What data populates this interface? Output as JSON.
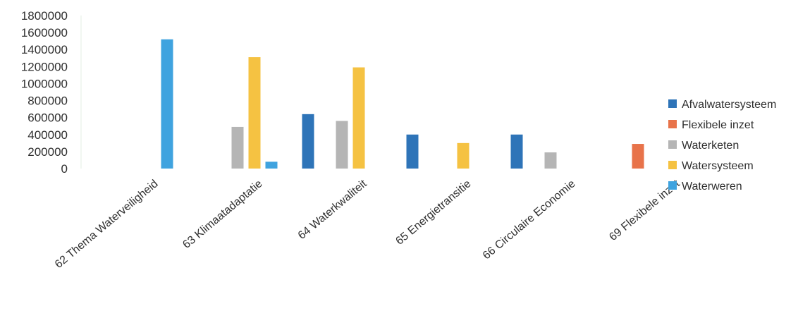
{
  "chart_data": {
    "type": "bar",
    "title": "",
    "xlabel": "",
    "ylabel": "",
    "ylim": [
      0,
      1800000
    ],
    "yticks": [
      0,
      200000,
      400000,
      600000,
      800000,
      1000000,
      1200000,
      1400000,
      1600000,
      1800000
    ],
    "ytick_labels": [
      "0",
      "200000",
      "400000",
      "600000",
      "800000",
      "1000000",
      "1200000",
      "1400000",
      "1600000",
      "1800000"
    ],
    "grid": false,
    "legend_position": "right",
    "categories": [
      "62 Thema Waterveiligheid",
      "63 Klimaatadaptatie",
      "64 Waterkwaliteit",
      "65 Energietransitie",
      "66 Circulaire Economie",
      "69 Flexibele inzet"
    ],
    "series": [
      {
        "name": "Afvalwatersysteem",
        "color": "#2e74b8",
        "values": [
          0,
          0,
          640000,
          400000,
          400000,
          0
        ]
      },
      {
        "name": "Flexibele inzet",
        "color": "#e8734a",
        "values": [
          0,
          0,
          0,
          0,
          0,
          290000
        ]
      },
      {
        "name": "Waterketen",
        "color": "#b5b5b5",
        "values": [
          0,
          490000,
          560000,
          0,
          190000,
          0
        ]
      },
      {
        "name": "Watersysteem",
        "color": "#f5c242",
        "values": [
          0,
          1310000,
          1190000,
          300000,
          0,
          0
        ]
      },
      {
        "name": "Waterweren",
        "color": "#3fa3df",
        "values": [
          1520000,
          80000,
          0,
          0,
          0,
          0
        ]
      }
    ]
  }
}
